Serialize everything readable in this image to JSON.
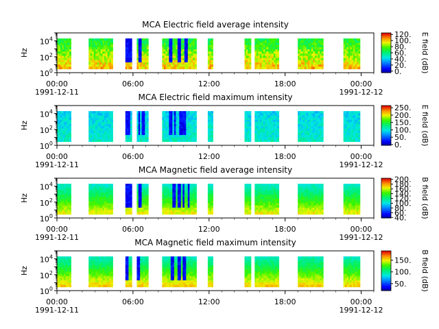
{
  "chart_data": [
    {
      "type": "heatmap",
      "title": "MCA  Electric field average intensity",
      "ylabel": "Hz",
      "yscale": "log",
      "ylim": [
        1,
        100000
      ],
      "y_tick_labels": [
        "10^0",
        "10^2",
        "10^4"
      ],
      "xlim": [
        "1991-12-11 00:00",
        "1991-12-12 01:00"
      ],
      "x_tick_labels": [
        "00:00",
        "06:00",
        "12:00",
        "18:00",
        "00:00"
      ],
      "x_date_labels": [
        "1991-12-11",
        "1991-12-12"
      ],
      "colorbar": {
        "label": "E field (dB)",
        "range": [
          -5,
          125
        ],
        "tick_labels": [
          "0.",
          "20.",
          "40.",
          "60.",
          "80.",
          "100.",
          "120."
        ],
        "tick_values": [
          0,
          20,
          40,
          60,
          80,
          100,
          120
        ]
      },
      "freq_range_hz": [
        3,
        20000
      ],
      "colormap": "rainbow",
      "typical_level": "green with yellow-red at low frequencies",
      "data_intervals_hours": [
        [
          0.0,
          1.1
        ],
        [
          2.5,
          4.4
        ],
        [
          5.4,
          5.9
        ],
        [
          6.3,
          7.2
        ],
        [
          8.3,
          11.0
        ],
        [
          11.9,
          12.3
        ],
        [
          14.8,
          15.3
        ],
        [
          15.6,
          17.5
        ],
        [
          19.0,
          21.0
        ],
        [
          22.6,
          23.9
        ]
      ]
    },
    {
      "type": "heatmap",
      "title": "MCA  Electric field maximum intensity",
      "ylabel": "Hz",
      "yscale": "log",
      "ylim": [
        1,
        100000
      ],
      "y_tick_labels": [
        "10^0",
        "10^2",
        "10^4"
      ],
      "xlim": [
        "1991-12-11 00:00",
        "1991-12-12 01:00"
      ],
      "x_tick_labels": [
        "00:00",
        "06:00",
        "12:00",
        "18:00",
        "00:00"
      ],
      "x_date_labels": [
        "1991-12-11",
        "1991-12-12"
      ],
      "colorbar": {
        "label": "E field (dB)",
        "range": [
          -5,
          265
        ],
        "tick_labels": [
          "0.",
          "50.",
          "100.",
          "150.",
          "200.",
          "250."
        ],
        "tick_values": [
          0,
          50,
          100,
          150,
          200,
          250
        ]
      },
      "freq_range_hz": [
        3,
        20000
      ],
      "colormap": "rainbow",
      "typical_level": "cyan with blue streaks",
      "data_intervals_hours": [
        [
          0.0,
          1.1
        ],
        [
          2.5,
          4.4
        ],
        [
          5.4,
          5.9
        ],
        [
          6.3,
          7.2
        ],
        [
          8.3,
          11.0
        ],
        [
          11.9,
          12.3
        ],
        [
          14.8,
          15.3
        ],
        [
          15.6,
          17.5
        ],
        [
          19.0,
          21.0
        ],
        [
          22.6,
          23.9
        ]
      ]
    },
    {
      "type": "heatmap",
      "title": "MCA  Magnetic field average intensity",
      "ylabel": "Hz",
      "yscale": "log",
      "ylim": [
        1,
        100000
      ],
      "y_tick_labels": [
        "10^0",
        "10^2",
        "10^4"
      ],
      "xlim": [
        "1991-12-11 00:00",
        "1991-12-12 01:00"
      ],
      "x_tick_labels": [
        "00:00",
        "06:00",
        "12:00",
        "18:00",
        "00:00"
      ],
      "x_date_labels": [
        "1991-12-11",
        "1991-12-12"
      ],
      "colorbar": {
        "label": "B field (dB)",
        "range": [
          38,
          205
        ],
        "tick_labels": [
          "40.",
          "60.",
          "80.",
          "100.",
          "120.",
          "140.",
          "160.",
          "180.",
          "200."
        ],
        "tick_values": [
          40,
          60,
          80,
          100,
          120,
          140,
          160,
          180,
          200
        ]
      },
      "freq_range_hz": [
        3,
        20000
      ],
      "colormap": "rainbow",
      "typical_level": "cyan at high frequencies, green to yellow at low frequencies",
      "data_intervals_hours": [
        [
          0.0,
          1.1
        ],
        [
          2.5,
          4.4
        ],
        [
          5.4,
          5.9
        ],
        [
          6.3,
          7.2
        ],
        [
          8.3,
          11.0
        ],
        [
          11.9,
          12.3
        ],
        [
          14.8,
          15.3
        ],
        [
          15.6,
          17.5
        ],
        [
          19.0,
          21.0
        ],
        [
          22.6,
          23.9
        ]
      ]
    },
    {
      "type": "heatmap",
      "title": "MCA  Magnetic field maximum intensity",
      "ylabel": "Hz",
      "yscale": "log",
      "ylim": [
        1,
        100000
      ],
      "y_tick_labels": [
        "10^0",
        "10^2",
        "10^4"
      ],
      "xlim": [
        "1991-12-11 00:00",
        "1991-12-12 01:00"
      ],
      "x_tick_labels": [
        "00:00",
        "06:00",
        "12:00",
        "18:00",
        "00:00"
      ],
      "x_date_labels": [
        "1991-12-11",
        "1991-12-12"
      ],
      "colorbar": {
        "label": "B field (dB)",
        "range": [
          20,
          190
        ],
        "tick_labels": [
          "50.",
          "100.",
          "150."
        ],
        "tick_values": [
          50,
          100,
          150
        ]
      },
      "freq_range_hz": [
        3,
        20000
      ],
      "colormap": "rainbow",
      "typical_level": "cyan at high frequencies, green to yellow-orange at low frequencies",
      "data_intervals_hours": [
        [
          0.0,
          1.1
        ],
        [
          2.5,
          4.4
        ],
        [
          5.4,
          5.9
        ],
        [
          6.3,
          7.2
        ],
        [
          8.3,
          11.0
        ],
        [
          11.9,
          12.3
        ],
        [
          14.8,
          15.3
        ],
        [
          15.6,
          17.5
        ],
        [
          19.0,
          21.0
        ],
        [
          22.6,
          23.9
        ]
      ]
    }
  ]
}
